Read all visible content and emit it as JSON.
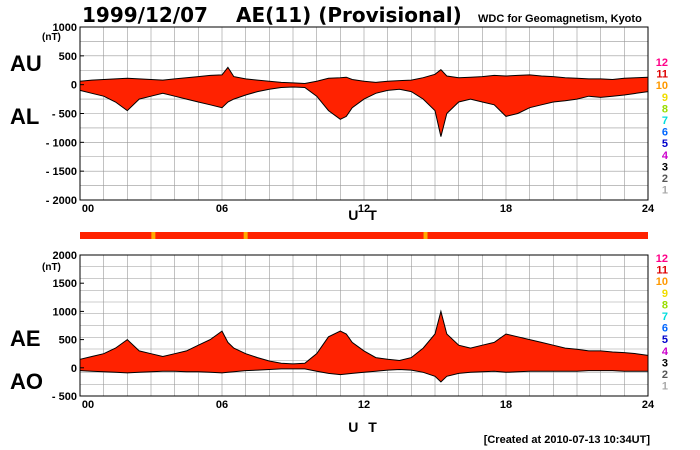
{
  "header": {
    "date": "1999/12/07",
    "title": "AE(11) (Provisional)",
    "source": "WDC for Geomagnetism, Kyoto"
  },
  "footer": {
    "created": "[Created at 2010-07-13 10:34UT]"
  },
  "chart_data": [
    {
      "type": "area",
      "labels": [
        "AU",
        "AL"
      ],
      "unit": "(nT)",
      "xlabel": "U T",
      "xlim": [
        0,
        24
      ],
      "xticks": [
        0,
        6,
        12,
        18,
        24
      ],
      "xtick_labels": [
        "00",
        "06",
        "12",
        "18",
        "24"
      ],
      "ylim": [
        -2000,
        1000
      ],
      "yticks": [
        -2000,
        -1500,
        -1000,
        -500,
        0,
        500,
        1000
      ],
      "ytick_labels": [
        "- 2000",
        "- 1500",
        "- 1000",
        "- 500",
        "0",
        "500",
        "1000"
      ],
      "grid": true,
      "x": [
        0,
        0.5,
        1,
        1.5,
        2,
        2.5,
        3,
        3.5,
        4,
        4.5,
        5,
        5.5,
        6,
        6.25,
        6.5,
        7,
        7.5,
        8,
        8.5,
        9,
        9.5,
        10,
        10.5,
        11,
        11.25,
        11.5,
        12,
        12.5,
        13,
        13.5,
        14,
        14.5,
        15,
        15.25,
        15.5,
        16,
        16.5,
        17,
        17.5,
        18,
        18.5,
        19,
        19.5,
        20,
        20.5,
        21,
        21.5,
        22,
        22.5,
        23,
        23.5,
        24
      ],
      "series": [
        {
          "values": [
            60,
            80,
            90,
            100,
            110,
            100,
            90,
            80,
            100,
            120,
            140,
            160,
            170,
            300,
            140,
            100,
            80,
            60,
            40,
            30,
            20,
            60,
            110,
            120,
            130,
            90,
            60,
            40,
            60,
            70,
            80,
            120,
            180,
            260,
            150,
            120,
            130,
            140,
            160,
            150,
            160,
            170,
            150,
            140,
            120,
            110,
            100,
            100,
            90,
            110,
            120,
            130
          ]
        },
        {
          "values": [
            -100,
            -150,
            -200,
            -300,
            -450,
            -250,
            -200,
            -150,
            -200,
            -250,
            -300,
            -350,
            -400,
            -300,
            -250,
            -180,
            -120,
            -80,
            -50,
            -40,
            -50,
            -200,
            -450,
            -600,
            -550,
            -400,
            -250,
            -150,
            -100,
            -80,
            -120,
            -250,
            -450,
            -900,
            -500,
            -300,
            -250,
            -300,
            -350,
            -550,
            -500,
            -400,
            -350,
            -300,
            -280,
            -250,
            -200,
            -220,
            -200,
            -180,
            -150,
            -120
          ]
        }
      ]
    },
    {
      "type": "area",
      "labels": [
        "AE",
        "AO"
      ],
      "unit": "(nT)",
      "xlabel": "U T",
      "xlim": [
        0,
        24
      ],
      "xticks": [
        0,
        6,
        12,
        18,
        24
      ],
      "xtick_labels": [
        "00",
        "06",
        "12",
        "18",
        "24"
      ],
      "ylim": [
        -500,
        2000
      ],
      "yticks": [
        -500,
        0,
        500,
        1000,
        1500,
        2000
      ],
      "ytick_labels": [
        "- 500",
        "0",
        "500",
        "1000",
        "1500",
        "2000"
      ],
      "grid": true,
      "x": [
        0,
        0.5,
        1,
        1.5,
        2,
        2.5,
        3,
        3.5,
        4,
        4.5,
        5,
        5.5,
        6,
        6.25,
        6.5,
        7,
        7.5,
        8,
        8.5,
        9,
        9.5,
        10,
        10.5,
        11,
        11.25,
        11.5,
        12,
        12.5,
        13,
        13.5,
        14,
        14.5,
        15,
        15.25,
        15.5,
        16,
        16.5,
        17,
        17.5,
        18,
        18.5,
        19,
        19.5,
        20,
        20.5,
        21,
        21.5,
        22,
        22.5,
        23,
        23.5,
        24
      ],
      "series": [
        {
          "values": [
            150,
            200,
            250,
            350,
            500,
            300,
            250,
            200,
            250,
            300,
            400,
            500,
            650,
            450,
            350,
            250,
            180,
            120,
            80,
            70,
            80,
            250,
            550,
            650,
            600,
            450,
            300,
            180,
            150,
            130,
            180,
            350,
            600,
            1000,
            600,
            400,
            350,
            400,
            450,
            600,
            550,
            500,
            450,
            400,
            350,
            330,
            300,
            300,
            280,
            270,
            250,
            220
          ]
        },
        {
          "values": [
            -50,
            -60,
            -70,
            -80,
            -90,
            -80,
            -70,
            -60,
            -60,
            -70,
            -70,
            -80,
            -90,
            -80,
            -70,
            -50,
            -40,
            -30,
            -20,
            -20,
            -20,
            -60,
            -100,
            -120,
            -110,
            -100,
            -80,
            -60,
            -40,
            -30,
            -40,
            -80,
            -150,
            -250,
            -150,
            -100,
            -80,
            -70,
            -60,
            -80,
            -70,
            -60,
            -60,
            -60,
            -60,
            -60,
            -50,
            -50,
            -50,
            -60,
            -60,
            -60
          ]
        }
      ]
    }
  ],
  "activity_legend": {
    "levels": [
      "12",
      "11",
      "10",
      "9",
      "8",
      "7",
      "6",
      "5",
      "4",
      "3",
      "2",
      "1"
    ],
    "colors": [
      "#ff0088",
      "#dd0000",
      "#ff9900",
      "#f0dd00",
      "#99dd00",
      "#00dddd",
      "#0066ff",
      "#0000cc",
      "#cc00cc",
      "#000000",
      "#555555",
      "#aaaaaa"
    ]
  },
  "status_bar": {
    "base_color": "#ff2200",
    "highlight_color": "#ffaa00",
    "highlights": [
      3.1,
      7.0,
      14.6
    ]
  },
  "colors": {
    "fill": "#ff2200",
    "outline": "#000000",
    "grid": "#999999"
  }
}
